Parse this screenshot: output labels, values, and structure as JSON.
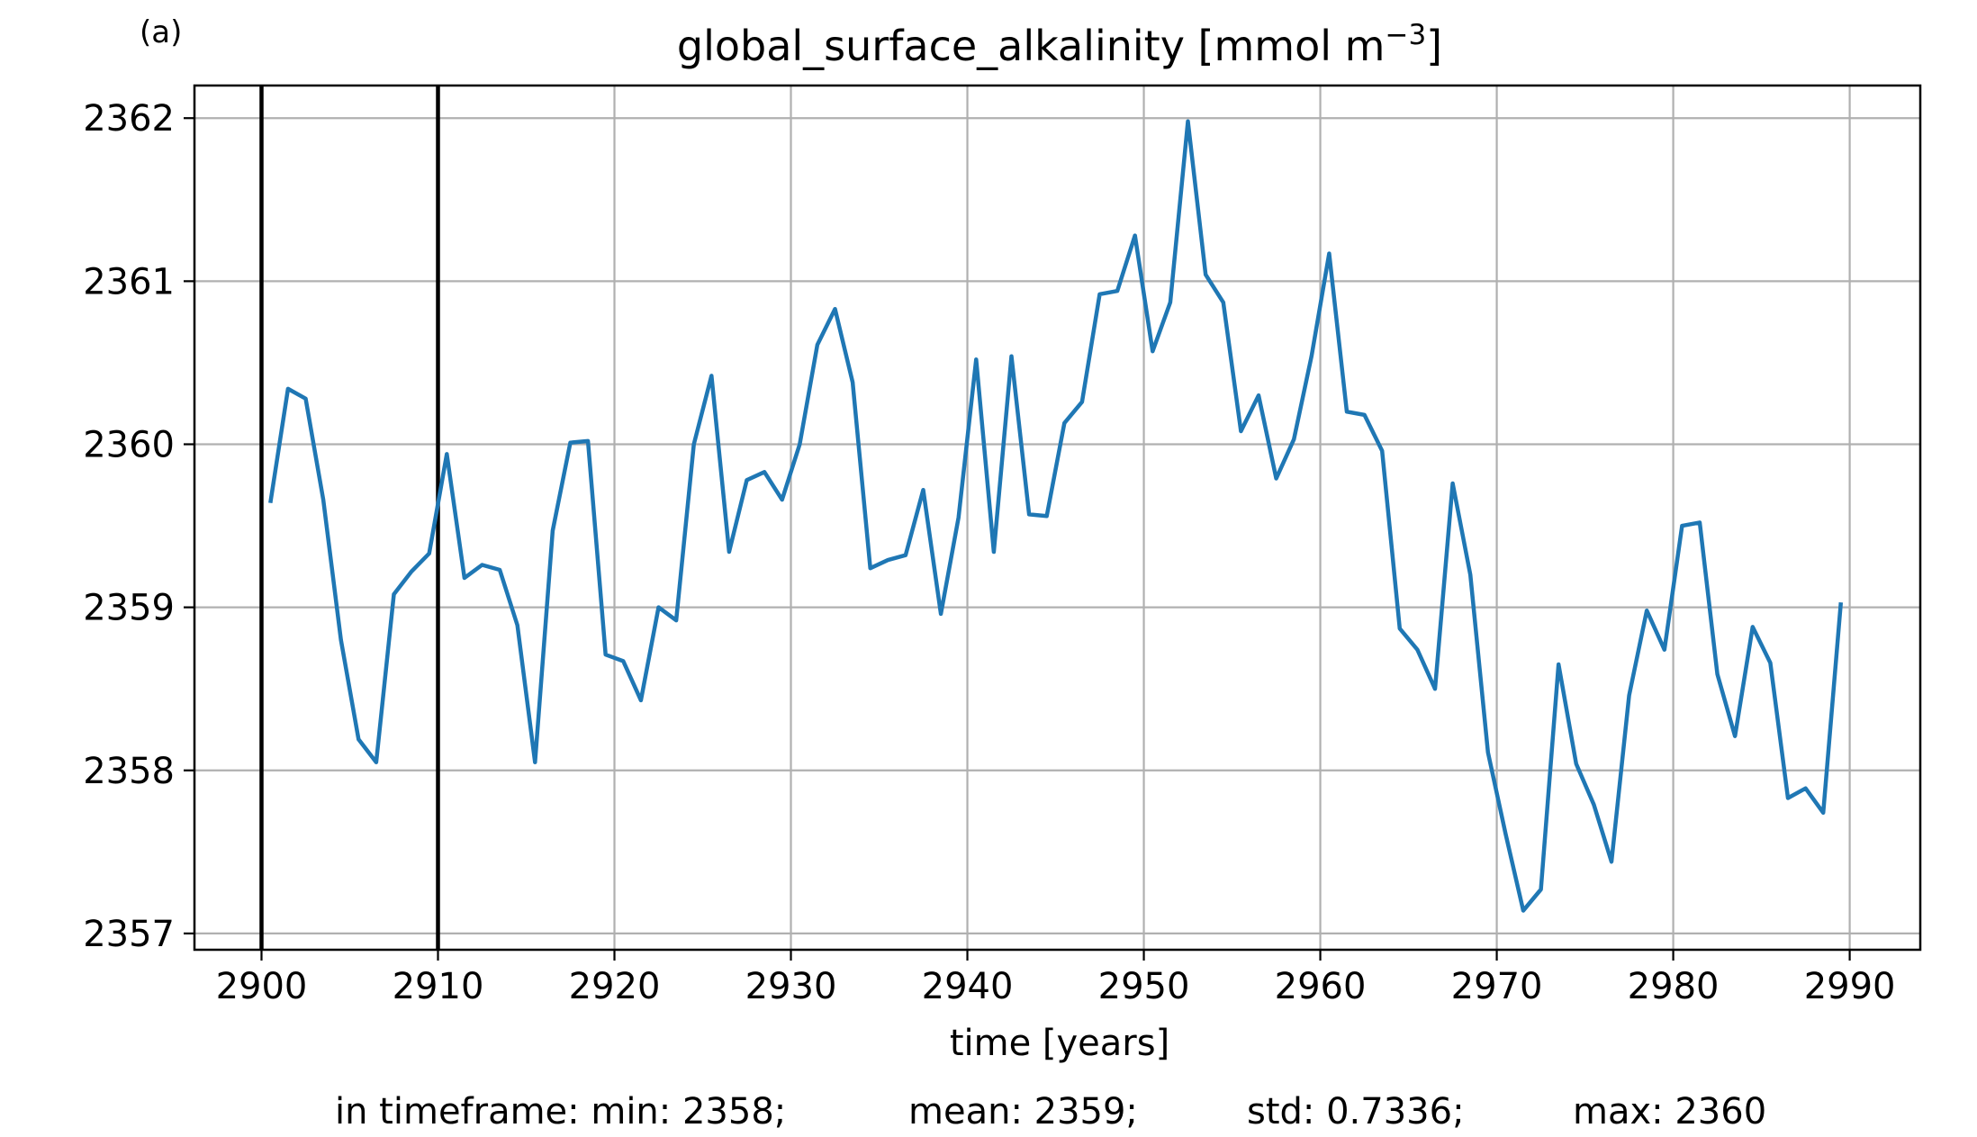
{
  "panel_label": "(a)",
  "chart_data": {
    "type": "line",
    "title": "global_surface_alkalinity [mmol m",
    "title_sup": "−3",
    "title_end": "]",
    "xlabel": "time [years]",
    "ylabel": "",
    "xlim": [
      2896.2,
      2994.0
    ],
    "ylim": [
      2356.9,
      2362.2
    ],
    "xticks": [
      2900,
      2910,
      2920,
      2930,
      2940,
      2950,
      2960,
      2970,
      2980,
      2990
    ],
    "yticks": [
      2357,
      2358,
      2359,
      2360,
      2361,
      2362
    ],
    "grid": true,
    "legend": "none",
    "line_color": "#1f77b4",
    "marker_color": "#000000",
    "vlines": [
      2900,
      2910
    ],
    "series": [
      {
        "x": [
          2900.5,
          2901.5,
          2902.5,
          2903.5,
          2904.5,
          2905.5,
          2906.5,
          2907.5,
          2908.5,
          2909.5,
          2910.5,
          2911.5,
          2912.5,
          2913.5,
          2914.5,
          2915.5,
          2916.5,
          2917.5,
          2918.5,
          2919.5,
          2920.5,
          2921.5,
          2922.5,
          2923.5,
          2924.5,
          2925.5,
          2926.5,
          2927.5,
          2928.5,
          2929.5,
          2930.5,
          2931.5,
          2932.5,
          2933.5,
          2934.5,
          2935.5,
          2936.5,
          2937.5,
          2938.5,
          2939.5,
          2940.5,
          2941.5,
          2942.5,
          2943.5,
          2944.5,
          2945.5,
          2946.5,
          2947.5,
          2948.5,
          2949.5,
          2950.5,
          2951.5,
          2952.5,
          2953.5,
          2954.5,
          2955.5,
          2956.5,
          2957.5,
          2958.5,
          2959.5,
          2960.5,
          2961.5,
          2962.5,
          2963.5,
          2964.5,
          2965.5,
          2966.5,
          2967.5,
          2968.5,
          2969.5,
          2970.5,
          2971.5,
          2972.5,
          2973.5,
          2974.5,
          2975.5,
          2976.5,
          2977.5,
          2978.5,
          2979.5,
          2980.5,
          2981.5,
          2982.5,
          2983.5,
          2984.5,
          2985.5,
          2986.5,
          2987.5,
          2988.5,
          2989.5
        ],
        "y": [
          2359.64,
          2360.34,
          2360.28,
          2359.66,
          2358.8,
          2358.19,
          2358.05,
          2359.08,
          2359.22,
          2359.33,
          2359.94,
          2359.18,
          2359.26,
          2359.23,
          2358.89,
          2358.05,
          2359.47,
          2360.01,
          2360.02,
          2358.71,
          2358.67,
          2358.43,
          2359.0,
          2358.92,
          2360.0,
          2360.42,
          2359.34,
          2359.78,
          2359.83,
          2359.66,
          2360.0,
          2360.61,
          2360.83,
          2360.38,
          2359.24,
          2359.29,
          2359.32,
          2359.72,
          2358.96,
          2359.55,
          2360.52,
          2359.34,
          2360.54,
          2359.57,
          2359.56,
          2360.13,
          2360.26,
          2360.92,
          2360.94,
          2361.28,
          2360.57,
          2360.87,
          2361.98,
          2361.04,
          2360.87,
          2360.08,
          2360.3,
          2359.79,
          2360.03,
          2360.54,
          2361.17,
          2360.2,
          2360.18,
          2359.96,
          2358.87,
          2358.74,
          2358.5,
          2359.76,
          2359.2,
          2358.11,
          2357.61,
          2357.14,
          2357.27,
          2358.65,
          2358.04,
          2357.79,
          2357.44,
          2358.46,
          2358.98,
          2358.74,
          2359.5,
          2359.52,
          2358.59,
          2358.21,
          2358.88,
          2358.66,
          2357.83,
          2357.89,
          2357.74,
          2359.03
        ]
      }
    ]
  },
  "footer": {
    "prefix": "in timeframe: min: 2358;",
    "mean": "mean: 2359;",
    "std": "std: 0.7336;",
    "max": "max: 2360"
  }
}
